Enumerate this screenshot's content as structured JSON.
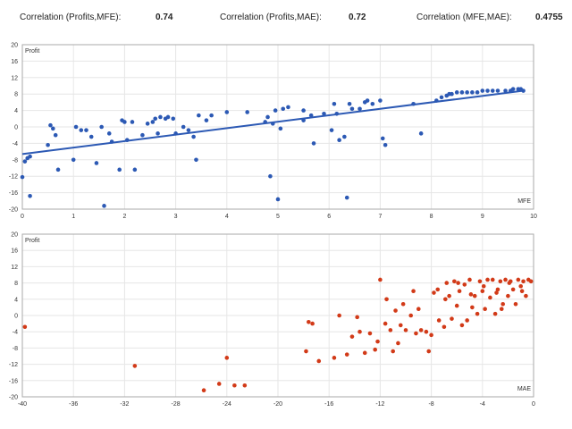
{
  "header": {
    "corr1_label": "Correlation (Profits,MFE):",
    "corr1_value": "0.74",
    "corr2_label": "Correlation (Profits,MAE):",
    "corr2_value": "0.72",
    "corr3_label": "Correlation (MFE,MAE):",
    "corr3_value": "0.4755"
  },
  "colors": {
    "mfe": "#2c59b4",
    "mae": "#d23a18",
    "trend": "#2c59b4"
  },
  "chart_data": [
    {
      "type": "scatter",
      "xlabel": "MFE",
      "ylabel": "Profit",
      "xlim": [
        0,
        10
      ],
      "ylim": [
        -20,
        20
      ],
      "xticks": [
        "0",
        "1",
        "2",
        "3",
        "4",
        "5",
        "6",
        "7",
        "8",
        "9",
        "10"
      ],
      "yticks": [
        "20",
        "16",
        "12",
        "8",
        "4",
        "0",
        "-4",
        "-8",
        "-12",
        "-16",
        "-20"
      ],
      "trendline": [
        [
          0,
          -6.6
        ],
        [
          9.8,
          8.8
        ]
      ],
      "points": [
        [
          0.0,
          -12.2
        ],
        [
          0.05,
          -8.4
        ],
        [
          0.1,
          -7.6
        ],
        [
          0.15,
          -7.2
        ],
        [
          0.15,
          -16.8
        ],
        [
          0.5,
          -4.4
        ],
        [
          0.55,
          0.4
        ],
        [
          0.6,
          -0.4
        ],
        [
          0.65,
          -2.0
        ],
        [
          0.7,
          -10.4
        ],
        [
          1.0,
          -8.0
        ],
        [
          1.05,
          0.0
        ],
        [
          1.15,
          -0.8
        ],
        [
          1.25,
          -0.8
        ],
        [
          1.35,
          -2.4
        ],
        [
          1.45,
          -8.8
        ],
        [
          1.55,
          0.0
        ],
        [
          1.6,
          -19.2
        ],
        [
          1.7,
          -1.6
        ],
        [
          1.75,
          -3.6
        ],
        [
          1.9,
          -10.4
        ],
        [
          1.95,
          1.6
        ],
        [
          2.0,
          1.2
        ],
        [
          2.05,
          -3.2
        ],
        [
          2.15,
          1.2
        ],
        [
          2.2,
          -10.4
        ],
        [
          2.35,
          -2.0
        ],
        [
          2.45,
          0.8
        ],
        [
          2.55,
          1.2
        ],
        [
          2.6,
          2.0
        ],
        [
          2.65,
          -1.6
        ],
        [
          2.7,
          2.4
        ],
        [
          2.8,
          2.0
        ],
        [
          2.85,
          2.4
        ],
        [
          2.95,
          2.0
        ],
        [
          3.0,
          -1.6
        ],
        [
          3.15,
          0.0
        ],
        [
          3.25,
          -0.8
        ],
        [
          3.35,
          -2.4
        ],
        [
          3.4,
          -8.0
        ],
        [
          3.45,
          2.8
        ],
        [
          3.6,
          1.6
        ],
        [
          3.7,
          2.8
        ],
        [
          4.0,
          3.6
        ],
        [
          4.4,
          3.6
        ],
        [
          4.75,
          1.2
        ],
        [
          4.8,
          2.4
        ],
        [
          4.85,
          -12.0
        ],
        [
          4.9,
          0.8
        ],
        [
          4.95,
          4.0
        ],
        [
          5.0,
          -17.6
        ],
        [
          5.05,
          -0.4
        ],
        [
          5.1,
          4.4
        ],
        [
          5.2,
          4.8
        ],
        [
          5.5,
          4.0
        ],
        [
          5.5,
          1.6
        ],
        [
          5.65,
          2.8
        ],
        [
          5.7,
          -4.0
        ],
        [
          5.9,
          3.2
        ],
        [
          6.05,
          -0.8
        ],
        [
          6.1,
          5.6
        ],
        [
          6.15,
          3.2
        ],
        [
          6.2,
          -3.2
        ],
        [
          6.3,
          -2.4
        ],
        [
          6.35,
          -17.2
        ],
        [
          6.4,
          5.6
        ],
        [
          6.45,
          4.4
        ],
        [
          6.6,
          4.4
        ],
        [
          6.7,
          6.0
        ],
        [
          6.75,
          6.4
        ],
        [
          6.85,
          5.6
        ],
        [
          7.0,
          6.4
        ],
        [
          7.05,
          -2.8
        ],
        [
          7.1,
          -4.4
        ],
        [
          7.65,
          5.6
        ],
        [
          7.8,
          -1.6
        ],
        [
          8.1,
          6.4
        ],
        [
          8.2,
          7.2
        ],
        [
          8.3,
          7.6
        ],
        [
          8.35,
          8.0
        ],
        [
          8.4,
          8.0
        ],
        [
          8.5,
          8.4
        ],
        [
          8.6,
          8.4
        ],
        [
          8.7,
          8.4
        ],
        [
          8.8,
          8.4
        ],
        [
          8.9,
          8.4
        ],
        [
          9.0,
          8.8
        ],
        [
          9.1,
          8.8
        ],
        [
          9.2,
          8.8
        ],
        [
          9.3,
          8.8
        ],
        [
          9.45,
          8.8
        ],
        [
          9.55,
          8.8
        ],
        [
          9.6,
          9.2
        ],
        [
          9.7,
          9.2
        ],
        [
          9.75,
          9.2
        ],
        [
          9.8,
          8.8
        ]
      ]
    },
    {
      "type": "scatter",
      "xlabel": "MAE",
      "ylabel": "Profit",
      "xlim": [
        -40,
        0
      ],
      "ylim": [
        -20,
        20
      ],
      "xticks": [
        "-40",
        "-36",
        "-32",
        "-28",
        "-24",
        "-20",
        "-16",
        "-12",
        "-8",
        "-4",
        "0"
      ],
      "yticks": [
        "20",
        "16",
        "12",
        "8",
        "4",
        "0",
        "-4",
        "-8",
        "-12",
        "-16",
        "-20"
      ],
      "points": [
        [
          -39.8,
          -2.8
        ],
        [
          -31.2,
          -12.4
        ],
        [
          -25.8,
          -18.4
        ],
        [
          -24.6,
          -16.8
        ],
        [
          -24.0,
          -10.4
        ],
        [
          -23.4,
          -17.2
        ],
        [
          -22.6,
          -17.2
        ],
        [
          -17.8,
          -8.8
        ],
        [
          -17.6,
          -1.6
        ],
        [
          -17.3,
          -2.0
        ],
        [
          -16.8,
          -11.2
        ],
        [
          -15.6,
          -10.4
        ],
        [
          -15.2,
          0.0
        ],
        [
          -14.6,
          -9.6
        ],
        [
          -14.2,
          -5.2
        ],
        [
          -13.8,
          -0.4
        ],
        [
          -13.6,
          -4.0
        ],
        [
          -13.2,
          -9.2
        ],
        [
          -12.8,
          -4.4
        ],
        [
          -12.4,
          -8.4
        ],
        [
          -12.0,
          8.8
        ],
        [
          -12.2,
          -6.4
        ],
        [
          -11.6,
          -2.0
        ],
        [
          -11.5,
          4.0
        ],
        [
          -11.2,
          -3.6
        ],
        [
          -11.0,
          -8.8
        ],
        [
          -10.8,
          1.2
        ],
        [
          -10.6,
          -6.8
        ],
        [
          -10.4,
          -2.4
        ],
        [
          -10.2,
          2.8
        ],
        [
          -10.0,
          -3.6
        ],
        [
          -9.6,
          0.0
        ],
        [
          -9.4,
          6.0
        ],
        [
          -9.2,
          -4.4
        ],
        [
          -9.0,
          1.6
        ],
        [
          -8.8,
          -3.6
        ],
        [
          -8.4,
          -4.0
        ],
        [
          -8.2,
          -8.8
        ],
        [
          -8.0,
          -4.8
        ],
        [
          -7.8,
          5.6
        ],
        [
          -7.5,
          6.4
        ],
        [
          -7.4,
          -1.2
        ],
        [
          -7.0,
          -2.8
        ],
        [
          -6.8,
          8.0
        ],
        [
          -6.6,
          4.8
        ],
        [
          -6.4,
          -0.8
        ],
        [
          -6.2,
          8.4
        ],
        [
          -6.0,
          2.4
        ],
        [
          -5.8,
          6.0
        ],
        [
          -5.6,
          -2.4
        ],
        [
          -5.4,
          7.6
        ],
        [
          -5.2,
          -1.2
        ],
        [
          -5.0,
          8.8
        ],
        [
          -4.8,
          2.0
        ],
        [
          -4.6,
          4.8
        ],
        [
          -4.4,
          0.4
        ],
        [
          -4.2,
          8.4
        ],
        [
          -4.0,
          6.0
        ],
        [
          -3.8,
          1.6
        ],
        [
          -3.6,
          8.8
        ],
        [
          -3.4,
          4.4
        ],
        [
          -3.2,
          8.8
        ],
        [
          -3.0,
          0.4
        ],
        [
          -2.8,
          6.4
        ],
        [
          -2.6,
          8.4
        ],
        [
          -2.4,
          2.8
        ],
        [
          -2.2,
          8.8
        ],
        [
          -2.0,
          4.8
        ],
        [
          -1.8,
          8.4
        ],
        [
          -1.6,
          6.4
        ],
        [
          -1.4,
          2.8
        ],
        [
          -1.2,
          8.8
        ],
        [
          -1.0,
          7.2
        ],
        [
          -0.8,
          8.4
        ],
        [
          -0.6,
          4.8
        ],
        [
          -0.4,
          8.8
        ],
        [
          -0.2,
          8.4
        ],
        [
          -2.9,
          5.6
        ],
        [
          -4.9,
          5.2
        ],
        [
          -5.9,
          8.0
        ],
        [
          -6.9,
          4.0
        ],
        [
          -3.9,
          7.2
        ],
        [
          -1.9,
          8.0
        ],
        [
          -0.9,
          6.0
        ],
        [
          -2.5,
          1.6
        ]
      ]
    }
  ]
}
